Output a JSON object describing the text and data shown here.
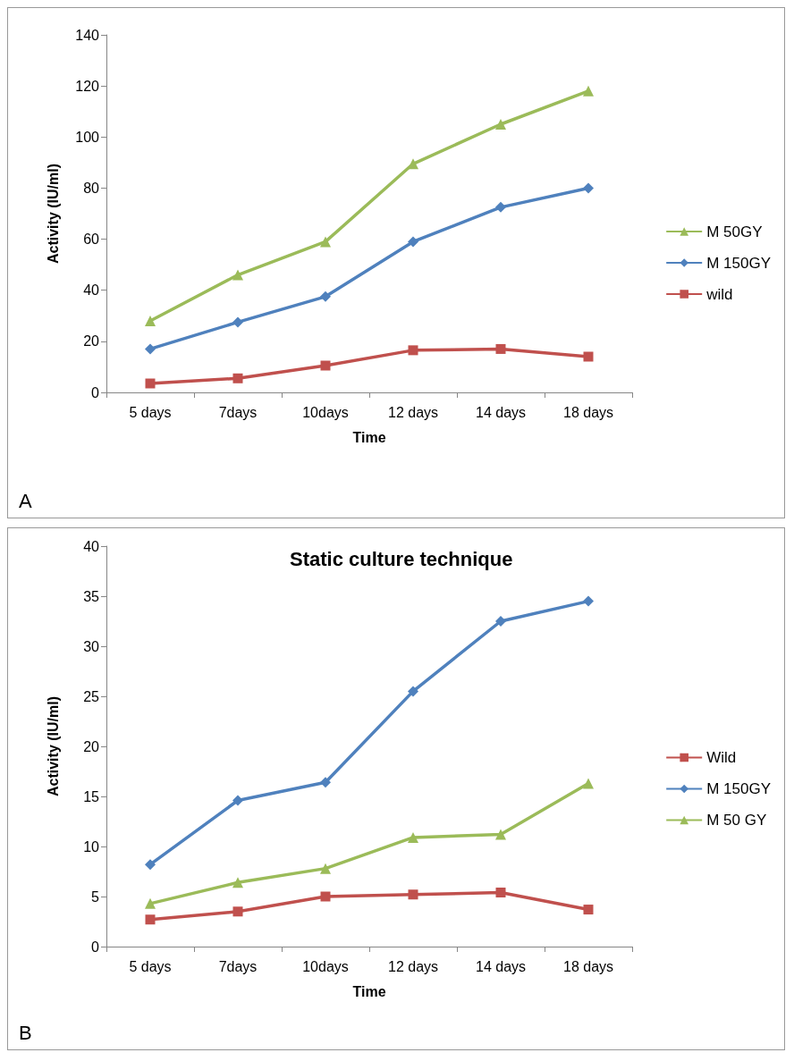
{
  "chart_data": [
    {
      "type": "line",
      "xlabel": "Time",
      "ylabel": "Activity (IU/ml)",
      "categories": [
        "5 days",
        "7days",
        "10days",
        "12 days",
        "14 days",
        "18 days"
      ],
      "series": [
        {
          "name": "M 50GY",
          "color": "#9bbb59",
          "marker": "triangle",
          "values": [
            28,
            46,
            59,
            89.5,
            105,
            118
          ]
        },
        {
          "name": "M 150GY",
          "color": "#4f81bd",
          "marker": "diamond",
          "values": [
            17,
            27.5,
            37.5,
            59,
            72.5,
            80
          ]
        },
        {
          "name": "wild",
          "color": "#c0504d",
          "marker": "square",
          "values": [
            3.5,
            5.5,
            10.5,
            16.5,
            17,
            14
          ]
        }
      ],
      "ylim": [
        0,
        140
      ],
      "yticks": [
        0,
        20,
        40,
        60,
        80,
        100,
        120,
        140
      ],
      "grid": false,
      "legend": "right",
      "annotations": [
        "A"
      ]
    },
    {
      "type": "line",
      "title": "Static culture technique",
      "xlabel": "Time",
      "ylabel": "Activity (IU/ml)",
      "categories": [
        "5 days",
        "7days",
        "10days",
        "12 days",
        "14 days",
        "18 days"
      ],
      "series": [
        {
          "name": "Wild",
          "color": "#c0504d",
          "marker": "square",
          "values": [
            2.7,
            3.5,
            5.0,
            5.2,
            5.4,
            3.7
          ]
        },
        {
          "name": "M 150GY",
          "color": "#4f81bd",
          "marker": "diamond",
          "values": [
            8.2,
            14.6,
            16.4,
            25.5,
            32.5,
            34.5
          ]
        },
        {
          "name": "M 50 GY",
          "color": "#9bbb59",
          "marker": "triangle",
          "values": [
            4.3,
            6.4,
            7.8,
            10.9,
            11.2,
            16.3
          ]
        }
      ],
      "ylim": [
        0,
        40
      ],
      "yticks": [
        0,
        5,
        10,
        15,
        20,
        25,
        30,
        35,
        40
      ],
      "grid": false,
      "legend": "right",
      "annotations": [
        "B"
      ]
    }
  ]
}
